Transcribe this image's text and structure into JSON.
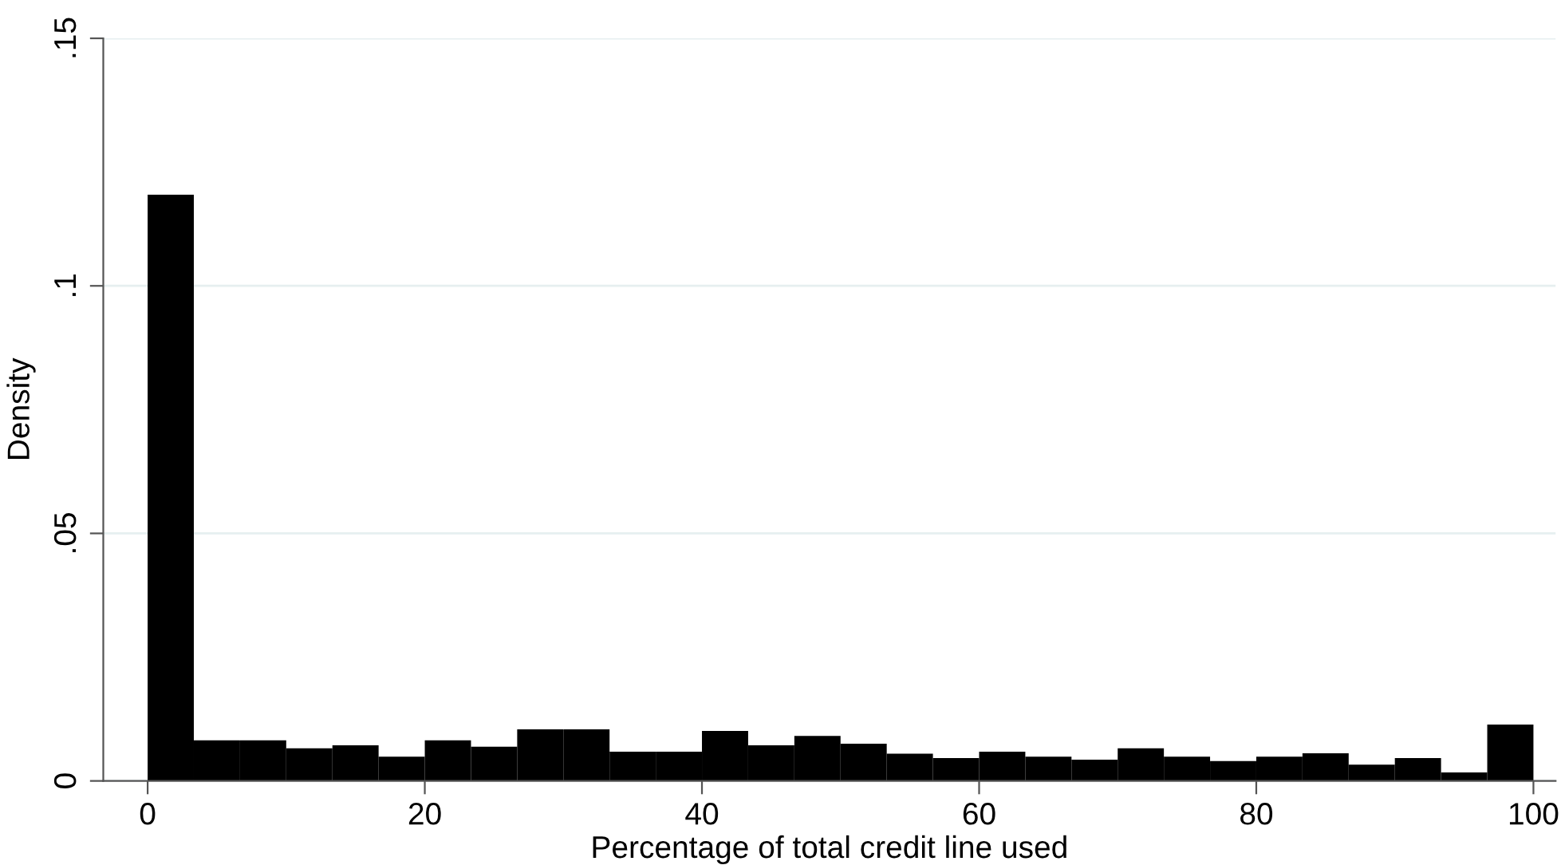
{
  "chart_data": {
    "type": "histogram",
    "xlabel": "Percentage of total credit line used",
    "ylabel": "Density",
    "bins": [
      0,
      3.333,
      6.667,
      10,
      13.333,
      16.667,
      20,
      23.333,
      26.667,
      30,
      33.333,
      36.667,
      40,
      43.333,
      46.667,
      50,
      53.333,
      56.667,
      60,
      63.333,
      66.667,
      70,
      73.333,
      76.667,
      80,
      83.333,
      86.667,
      90,
      93.333,
      96.667,
      100
    ],
    "values": [
      0.1184,
      0.0082,
      0.0082,
      0.0066,
      0.0072,
      0.0049,
      0.0082,
      0.0069,
      0.0104,
      0.0104,
      0.0059,
      0.0059,
      0.0101,
      0.0072,
      0.0091,
      0.0075,
      0.0055,
      0.0046,
      0.0059,
      0.0049,
      0.0043,
      0.0066,
      0.0049,
      0.004,
      0.0049,
      0.0056,
      0.0033,
      0.0046,
      0.0017,
      0.0114
    ],
    "color": "#000000",
    "xlim": [
      -3.2,
      101.6
    ],
    "xticks": [
      0,
      20,
      40,
      60,
      80,
      100
    ],
    "ylim": [
      0,
      0.15
    ],
    "yticks": [
      {
        "value": 0,
        "label": "0"
      },
      {
        "value": 0.05,
        "label": ".05"
      },
      {
        "value": 0.1,
        "label": ".1"
      },
      {
        "value": 0.15,
        "label": ".15"
      }
    ],
    "grid": "y"
  }
}
